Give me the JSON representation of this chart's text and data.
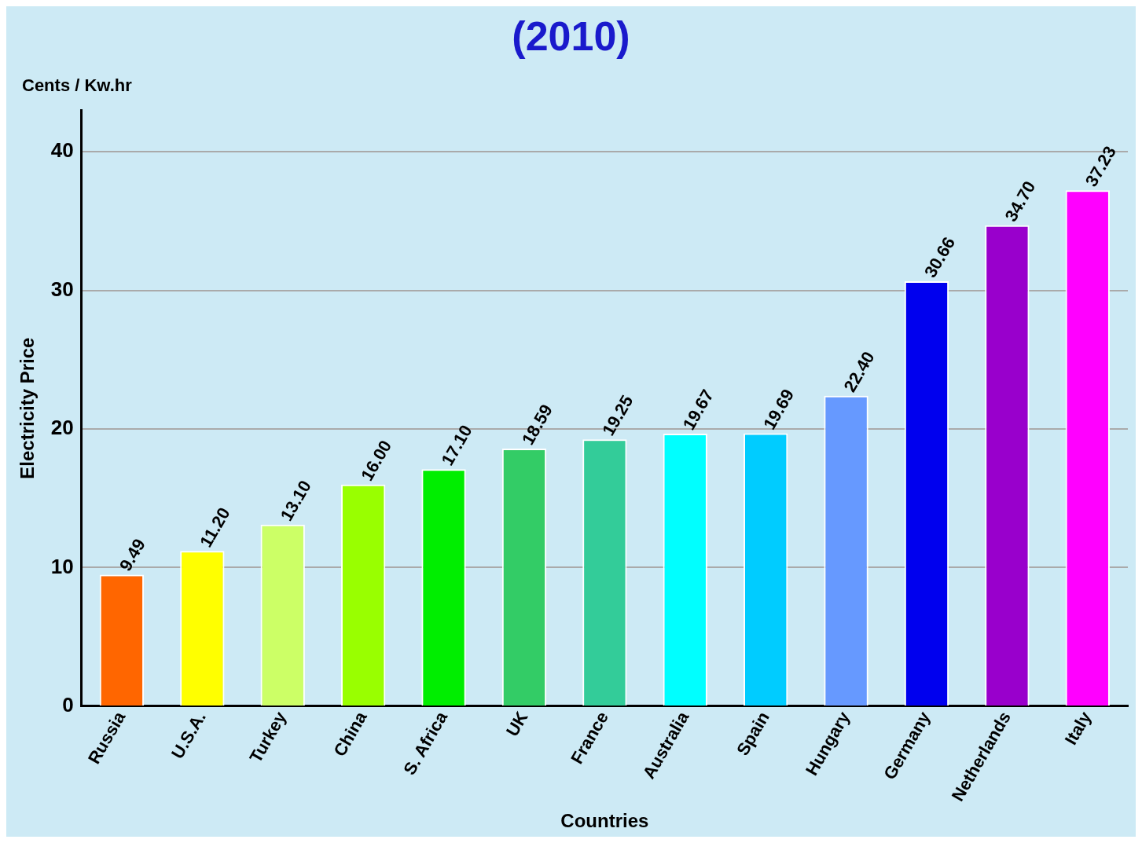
{
  "chart_data": {
    "type": "bar",
    "title": "(2010)",
    "xlabel": "Countries",
    "ylabel": "Electricity Price",
    "annotations": [
      "Cents / Kw.hr"
    ],
    "categories": [
      "Russia",
      "U.S.A.",
      "Turkey",
      "China",
      "S. Africa",
      "UK",
      "France",
      "Australia",
      "Spain",
      "Hungary",
      "Germany",
      "Netherlands",
      "Italy"
    ],
    "values": [
      9.49,
      11.2,
      13.1,
      16,
      17.1,
      18.59,
      19.25,
      19.67,
      19.69,
      22.4,
      30.66,
      34.7,
      37.23
    ],
    "value_labels": [
      "9.49",
      "11.20",
      "13.10",
      "16.00",
      "17.10",
      "18.59",
      "19.25",
      "19.67",
      "19.69",
      "22.40",
      "30.66",
      "34.70",
      "37.23"
    ],
    "colors": [
      "#ff6600",
      "#ffff00",
      "#ccff66",
      "#99ff00",
      "#00ee00",
      "#33cc66",
      "#33cc99",
      "#00ffff",
      "#00ccff",
      "#6699ff",
      "#0000ee",
      "#9900cc",
      "#ff00ff"
    ],
    "ylim": [
      0,
      43
    ],
    "yticks": [
      0,
      10,
      20,
      30,
      40
    ],
    "grid": "y",
    "legend": false
  }
}
